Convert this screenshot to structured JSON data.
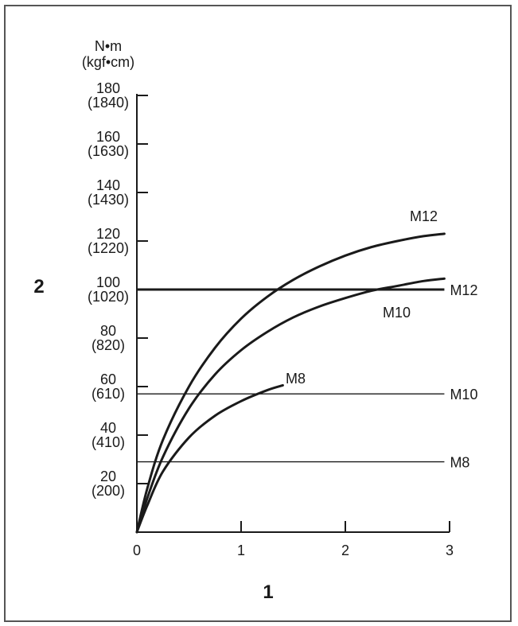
{
  "chart_data": {
    "type": "line",
    "y_unit_label": "N•m",
    "y_unit_label_alt": "(kgf•cm)",
    "xlabel": "1",
    "ylabel": "2",
    "xlim": [
      0,
      3
    ],
    "ylim": [
      0,
      180
    ],
    "x_ticks": [
      "0",
      "1",
      "2",
      "3"
    ],
    "y_ticks": [
      {
        "value": 20,
        "label": "20",
        "alt": "(200)"
      },
      {
        "value": 40,
        "label": "40",
        "alt": "(410)"
      },
      {
        "value": 60,
        "label": "60",
        "alt": "(610)"
      },
      {
        "value": 80,
        "label": "80",
        "alt": "(820)"
      },
      {
        "value": 100,
        "label": "100",
        "alt": "(1020)"
      },
      {
        "value": 120,
        "label": "120",
        "alt": "(1220)"
      },
      {
        "value": 140,
        "label": "140",
        "alt": "(1430)"
      },
      {
        "value": 160,
        "label": "160",
        "alt": "(1630)"
      },
      {
        "value": 180,
        "label": "180",
        "alt": "(1840)"
      }
    ],
    "curves": [
      {
        "name": "M12",
        "x": [
          0,
          0.1,
          0.25,
          0.5,
          0.75,
          1.0,
          1.25,
          1.5,
          1.75,
          2.0,
          2.25,
          2.5,
          2.75,
          2.95
        ],
        "y": [
          0,
          18,
          38,
          60,
          76,
          88,
          97,
          104,
          109.5,
          114,
          117.5,
          120,
          122,
          123
        ]
      },
      {
        "name": "M10",
        "x": [
          0,
          0.1,
          0.25,
          0.5,
          0.75,
          1.0,
          1.25,
          1.5,
          1.75,
          2.0,
          2.25,
          2.5,
          2.75,
          2.95
        ],
        "y": [
          0,
          14,
          31,
          51,
          65,
          75,
          82.5,
          88.5,
          93,
          96.5,
          99.5,
          101.5,
          103.5,
          104.5
        ]
      },
      {
        "name": "M8",
        "x": [
          0,
          0.1,
          0.25,
          0.5,
          0.75,
          1.0,
          1.25,
          1.4
        ],
        "y": [
          0,
          11,
          25,
          39,
          48,
          54,
          58.5,
          60.5
        ]
      }
    ],
    "reference_lines": [
      {
        "name": "M12",
        "y": 100,
        "weight": "heavy"
      },
      {
        "name": "M10",
        "y": 57,
        "weight": "light"
      },
      {
        "name": "M8",
        "y": 29,
        "weight": "light"
      }
    ],
    "grid": false,
    "legend": "none"
  }
}
